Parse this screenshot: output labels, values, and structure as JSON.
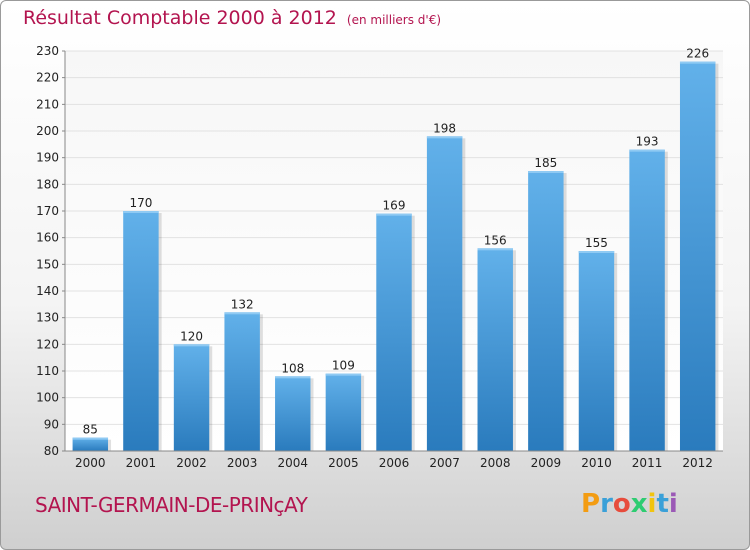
{
  "title": "Résultat Comptable 2000 à 2012",
  "unit": "(en milliers d'€)",
  "city": "SAINT-GERMAIN-DE-PRINçAY",
  "logo": {
    "letters": [
      "P",
      "r",
      "o",
      "x",
      "i",
      "t",
      "i"
    ],
    "colors": [
      "#f39c12",
      "#3aa0d8",
      "#e74c3c",
      "#2ecc71",
      "#f1c40f",
      "#3aa0d8",
      "#9b59b6"
    ]
  },
  "colors": {
    "bar_top": "#62b1ea",
    "bar_bottom": "#2a7bbd",
    "grid": "#e2e2e2",
    "accent": "#b3144f"
  },
  "chart_data": {
    "type": "bar",
    "categories": [
      "2000",
      "2001",
      "2002",
      "2003",
      "2004",
      "2005",
      "2006",
      "2007",
      "2008",
      "2009",
      "2010",
      "2011",
      "2012"
    ],
    "values": [
      85,
      170,
      120,
      132,
      108,
      109,
      169,
      198,
      156,
      185,
      155,
      193,
      226
    ],
    "ylim": [
      80,
      230
    ],
    "yticks": [
      80,
      90,
      100,
      110,
      120,
      130,
      140,
      150,
      160,
      170,
      180,
      190,
      200,
      210,
      220,
      230
    ],
    "grid": true
  }
}
